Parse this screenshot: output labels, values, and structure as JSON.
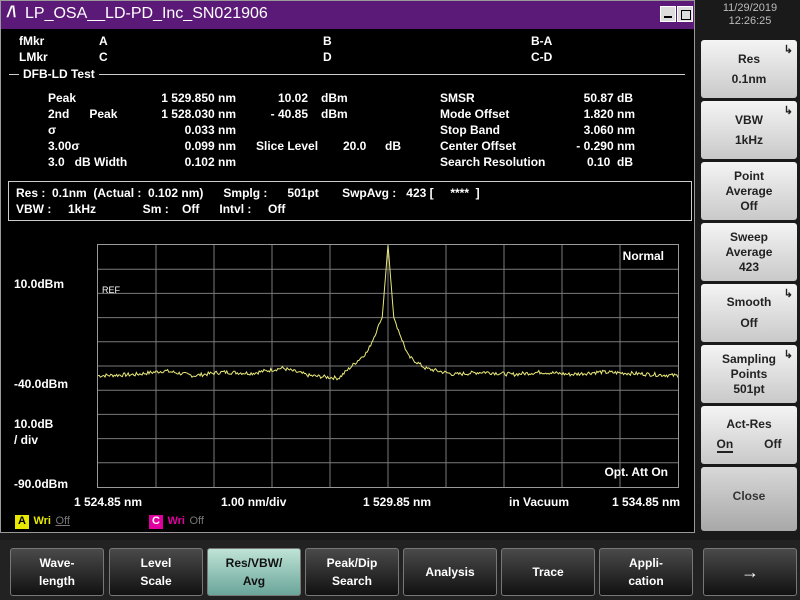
{
  "window": {
    "title": "LP_OSA__LD-PD_Inc_SN021906",
    "logo": "/\\"
  },
  "clock": {
    "date": "11/29/2019",
    "time": "12:26:25"
  },
  "markers": {
    "fmkr": "fMkr",
    "lmkr": "LMkr",
    "a": "A",
    "b": "B",
    "c": "C",
    "d": "D",
    "ba": "B-A",
    "cd": "C-D"
  },
  "test": {
    "title": "DFB-LD Test",
    "rows": [
      {
        "label": "Peak",
        "value": "1 529.850 nm",
        "level": "10.02",
        "unit": "dBm"
      },
      {
        "label": "2nd      Peak",
        "value": "1 528.030 nm",
        "level": "- 40.85",
        "unit": "dBm"
      },
      {
        "label": "σ",
        "value": "0.033 nm"
      },
      {
        "label": "3.00σ",
        "value": "0.099 nm",
        "slice_label": "Slice Level",
        "slice_value": "20.0",
        "slice_unit": "dB"
      },
      {
        "label": "3.0   dB Width",
        "value": "0.102 nm"
      }
    ],
    "right": [
      {
        "label": "SMSR",
        "value": "50.87 dB"
      },
      {
        "label": "Mode Offset",
        "value": "1.820 nm"
      },
      {
        "label": "Stop Band",
        "value": "3.060 nm"
      },
      {
        "label": "Center Offset",
        "value": "- 0.290 nm"
      },
      {
        "label": "Search Resolution",
        "value": "0.10  dB"
      }
    ]
  },
  "settings": {
    "line1": "Res :  0.1nm  (Actual :  0.102 nm)      Smplg :      501pt       SwpAvg :   423 [     ****  ]",
    "line2": "VBW :     1kHz              Sm :    Off      Intvl :     Off"
  },
  "graph": {
    "mode": "Normal",
    "ref_label": "REF",
    "y_top": "10.0dBm",
    "y_mid": "-40.0dBm",
    "y_scale": "10.0dB",
    "y_div": "/ div",
    "y_bottom": "-90.0dBm",
    "x_start": "1 524.85 nm",
    "x_div": "1.00 nm/div",
    "x_center": "1 529.85 nm",
    "x_medium": "in Vacuum",
    "x_stop": "1 534.85 nm",
    "att": "Opt. Att On",
    "trace_color": "#e8e87a"
  },
  "traces": {
    "a_letter": "A",
    "a_wri": "Wri",
    "a_state": "Off",
    "a_color": "#e8e800",
    "c_letter": "C",
    "c_wri": "Wri",
    "c_state": "Off",
    "c_color": "#e000a0"
  },
  "side_buttons": [
    {
      "l1": "Res",
      "l2": "0.1nm"
    },
    {
      "l1": "VBW",
      "l2": "1kHz"
    },
    {
      "l1": "Point",
      "l2": "Average",
      "l3": "Off"
    },
    {
      "l1": "Sweep",
      "l2": "Average",
      "l3": "423"
    },
    {
      "l1": "Smooth",
      "l2": "Off"
    },
    {
      "l1": "Sampling",
      "l2": "Points",
      "l3": "501pt"
    },
    {
      "l1": "Act-Res",
      "on": "On",
      "off": "Off"
    },
    {
      "l1": "Close"
    }
  ],
  "bottom_buttons": [
    {
      "l1": "Wave-",
      "l2": "length"
    },
    {
      "l1": "Level",
      "l2": "Scale"
    },
    {
      "l1": "Res/VBW/",
      "l2": "Avg"
    },
    {
      "l1": "Peak/Dip",
      "l2": "Search"
    },
    {
      "l1": "Analysis"
    },
    {
      "l1": "Trace"
    },
    {
      "l1": "Appli-",
      "l2": "cation"
    },
    {
      "l1": "→"
    }
  ],
  "chart_data": {
    "type": "line",
    "xlim": [
      1524.85,
      1534.85
    ],
    "ylim": [
      -90,
      10
    ],
    "x": [
      1524.85,
      1525.5,
      1526.0,
      1526.5,
      1527.0,
      1527.5,
      1528.03,
      1528.5,
      1529.0,
      1529.5,
      1529.75,
      1529.85,
      1529.95,
      1530.2,
      1530.5,
      1531.0,
      1531.5,
      1532.0,
      1532.5,
      1533.0,
      1533.5,
      1534.0,
      1534.85
    ],
    "y": [
      -44,
      -43.5,
      -42,
      -44,
      -42.5,
      -43,
      -40.85,
      -44,
      -45,
      -34,
      -20,
      10.02,
      -20,
      -36,
      -41,
      -43.5,
      -42.5,
      -43.5,
      -42.5,
      -43.5,
      -42.5,
      -43,
      -44
    ]
  }
}
